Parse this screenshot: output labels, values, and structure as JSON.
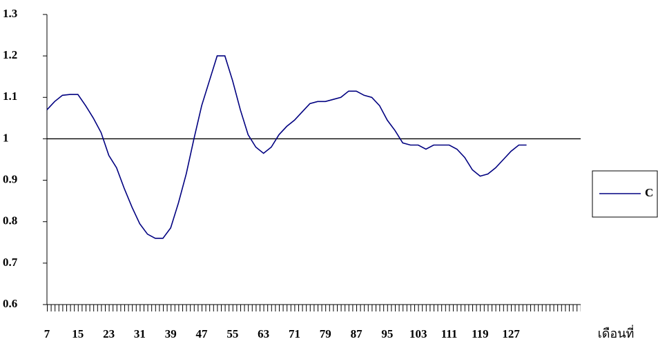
{
  "chart_data": {
    "type": "line",
    "x_label": "เดือนที่",
    "x": [
      7,
      9,
      11,
      13,
      15,
      17,
      19,
      21,
      23,
      25,
      27,
      29,
      31,
      33,
      35,
      37,
      39,
      41,
      43,
      45,
      47,
      49,
      51,
      53,
      55,
      57,
      59,
      61,
      63,
      65,
      67,
      69,
      71,
      73,
      75,
      77,
      79,
      81,
      83,
      85,
      87,
      89,
      91,
      93,
      95,
      97,
      99,
      101,
      103,
      105,
      107,
      109,
      111,
      113,
      115,
      117,
      119,
      121,
      123,
      125,
      127,
      129,
      131
    ],
    "series": [
      {
        "name": "C",
        "color": "#000080",
        "values": [
          1.07,
          1.09,
          1.105,
          1.107,
          1.107,
          1.08,
          1.05,
          1.015,
          0.96,
          0.93,
          0.88,
          0.835,
          0.795,
          0.77,
          0.76,
          0.76,
          0.785,
          0.845,
          0.915,
          1.0,
          1.08,
          1.14,
          1.2,
          1.2,
          1.14,
          1.07,
          1.01,
          0.98,
          0.965,
          0.98,
          1.01,
          1.03,
          1.045,
          1.065,
          1.085,
          1.09,
          1.09,
          1.095,
          1.1,
          1.115,
          1.115,
          1.105,
          1.1,
          1.08,
          1.045,
          1.02,
          0.99,
          0.985,
          0.985,
          0.975,
          0.985,
          0.985,
          0.985,
          0.975,
          0.955,
          0.925,
          0.91,
          0.915,
          0.93,
          0.95,
          0.97,
          0.985,
          0.985
        ]
      }
    ],
    "xlim": [
      7,
      145
    ],
    "xticks": [
      7,
      15,
      23,
      31,
      39,
      47,
      55,
      63,
      71,
      79,
      87,
      95,
      103,
      111,
      119,
      127
    ],
    "ylim": [
      0.6,
      1.3
    ],
    "yticks": [
      0.6,
      0.7,
      0.8,
      0.9,
      1,
      1.1,
      1.2,
      1.3
    ],
    "reference_line": 1,
    "legend": "right"
  }
}
